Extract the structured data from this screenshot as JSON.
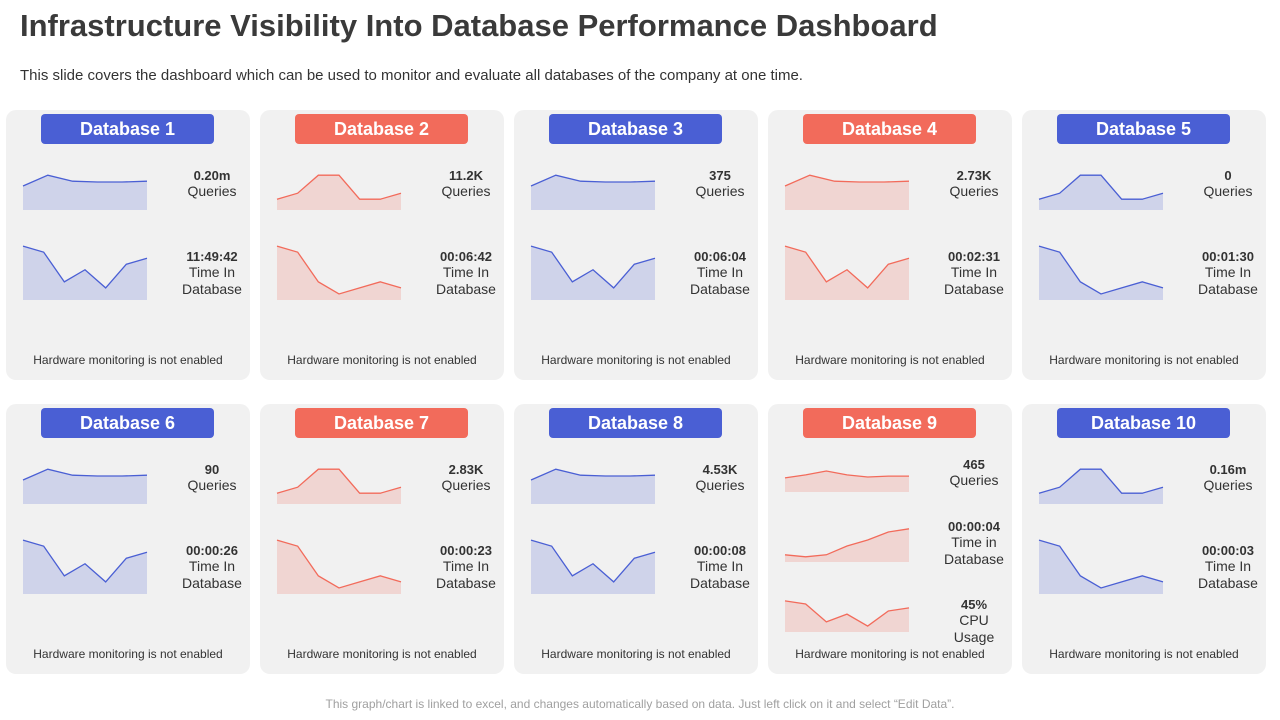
{
  "header": {
    "title": "Infrastructure Visibility Into Database Performance Dashboard",
    "subtitle": "This slide covers the dashboard which can be used to monitor and evaluate all databases of the company at one time."
  },
  "cards": [
    {
      "title": "Database 1",
      "color": "#4a5fd4",
      "footer": "Hardware monitoring is not enabled",
      "metrics": [
        {
          "value": "0.20m",
          "label": "Queries",
          "spark": [
            6,
            8.7,
            7.2,
            7,
            7,
            7.2
          ]
        },
        {
          "value": "11:49:42",
          "label": "Time In Database",
          "spark": [
            9.8,
            8.7,
            3.3,
            5.5,
            2.2,
            6.5,
            7.6
          ]
        }
      ]
    },
    {
      "title": "Database 2",
      "color": "#f26b5b",
      "footer": "Hardware monitoring is not enabled",
      "metrics": [
        {
          "value": "11.2K",
          "label": "Queries",
          "spark": [
            2.7,
            4.2,
            8.7,
            8.7,
            2.7,
            2.7,
            4.2
          ]
        },
        {
          "value": "00:06:42",
          "label": "Time In Database",
          "spark": [
            9.8,
            8.7,
            3.3,
            1.1,
            2.2,
            3.3,
            2.2
          ]
        }
      ]
    },
    {
      "title": "Database 3",
      "color": "#4a5fd4",
      "footer": "Hardware monitoring is not enabled",
      "metrics": [
        {
          "value": "375",
          "label": "Queries",
          "spark": [
            6,
            8.7,
            7.2,
            7,
            7,
            7.2
          ]
        },
        {
          "value": "00:06:04",
          "label": "Time In Database",
          "spark": [
            9.8,
            8.7,
            3.3,
            5.5,
            2.2,
            6.5,
            7.6
          ]
        }
      ]
    },
    {
      "title": "Database 4",
      "color": "#f26b5b",
      "footer": "Hardware monitoring is not enabled",
      "metrics": [
        {
          "value": "2.73K",
          "label": "Queries",
          "spark": [
            6,
            8.7,
            7.2,
            7,
            7,
            7.2
          ]
        },
        {
          "value": "00:02:31",
          "label": "Time In Database",
          "spark": [
            9.8,
            8.7,
            3.3,
            5.5,
            2.2,
            6.5,
            7.6
          ]
        }
      ]
    },
    {
      "title": "Database 5",
      "color": "#4a5fd4",
      "footer": "Hardware monitoring is not enabled",
      "metrics": [
        {
          "value": "0",
          "label": "Queries",
          "spark": [
            2.7,
            4.2,
            8.7,
            8.7,
            2.7,
            2.7,
            4.2
          ]
        },
        {
          "value": "00:01:30",
          "label": "Time In Database",
          "spark": [
            9.8,
            8.7,
            3.3,
            1.1,
            2.2,
            3.3,
            2.2
          ]
        }
      ]
    },
    {
      "title": "Database 6",
      "color": "#4a5fd4",
      "footer": "Hardware monitoring is not enabled",
      "metrics": [
        {
          "value": "90",
          "label": "Queries",
          "spark": [
            6,
            8.7,
            7.2,
            7,
            7,
            7.2
          ]
        },
        {
          "value": "00:00:26",
          "label": "Time In Database",
          "spark": [
            9.8,
            8.7,
            3.3,
            5.5,
            2.2,
            6.5,
            7.6
          ]
        }
      ]
    },
    {
      "title": "Database 7",
      "color": "#f26b5b",
      "footer": "Hardware monitoring is not enabled",
      "metrics": [
        {
          "value": "2.83K",
          "label": "Queries",
          "spark": [
            2.7,
            4.2,
            8.7,
            8.7,
            2.7,
            2.7,
            4.2
          ]
        },
        {
          "value": "00:00:23",
          "label": "Time In Database",
          "spark": [
            9.8,
            8.7,
            3.3,
            1.1,
            2.2,
            3.3,
            2.2
          ]
        }
      ]
    },
    {
      "title": "Database 8",
      "color": "#4a5fd4",
      "footer": "Hardware monitoring is not enabled",
      "metrics": [
        {
          "value": "4.53K",
          "label": "Queries",
          "spark": [
            6,
            8.7,
            7.2,
            7,
            7,
            7.2
          ]
        },
        {
          "value": "00:00:08",
          "label": "Time In Database",
          "spark": [
            9.8,
            8.7,
            3.3,
            5.5,
            2.2,
            6.5,
            7.6
          ]
        }
      ]
    },
    {
      "title": "Database 9",
      "color": "#f26b5b",
      "footer": "Hardware monitoring is not enabled",
      "metrics": [
        {
          "value": "465",
          "label": "Queries",
          "spark": [
            4.7,
            5.7,
            7,
            5.7,
            5,
            5.3,
            5.3
          ]
        },
        {
          "value": "00:00:04",
          "label": "Time in Database",
          "spark": [
            1.8,
            1.3,
            1.8,
            4,
            5.5,
            7.5,
            8.3
          ]
        },
        {
          "value": "45%",
          "label": "CPU Usage",
          "spark": [
            8.9,
            8,
            2.9,
            5.1,
            1.7,
            6,
            6.9
          ]
        }
      ]
    },
    {
      "title": "Database 10",
      "color": "#4a5fd4",
      "footer": "Hardware monitoring is not enabled",
      "metrics": [
        {
          "value": "0.16m",
          "label": "Queries",
          "spark": [
            2.7,
            4.2,
            8.7,
            8.7,
            2.7,
            2.7,
            4.2
          ]
        },
        {
          "value": "00:00:03",
          "label": "Time In Database",
          "spark": [
            9.8,
            8.7,
            3.3,
            1.1,
            2.2,
            3.3,
            2.2
          ]
        }
      ]
    }
  ],
  "footnote": "This graph/chart is linked to excel, and changes automatically based on data. Just left click on it and select “Edit Data”."
}
